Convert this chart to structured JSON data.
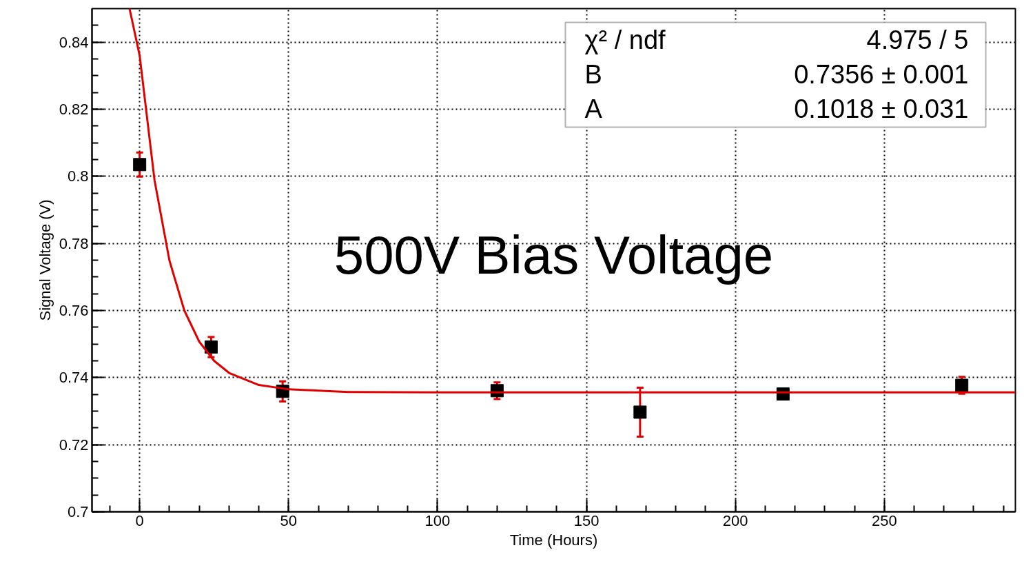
{
  "chart_data": {
    "type": "scatter",
    "title": "500V Bias Voltage",
    "xlabel": "Time (Hours)",
    "ylabel": "Signal Voltage (V)",
    "annotations": [
      "χ² / ndf",
      "4.975 / 5",
      "B",
      "0.7356 ± 0.001",
      "A",
      "0.1018 ± 0.031"
    ],
    "series": [
      {
        "color": "#000000",
        "marker": "square",
        "x": [
          0,
          24,
          48,
          120,
          168,
          216,
          276
        ],
        "values": [
          0.8035,
          0.7491,
          0.7359,
          0.7361,
          0.7297,
          0.7351,
          0.7377
        ],
        "errors": [
          0.0036,
          0.003,
          0.003,
          0.0025,
          0.0073,
          0.001,
          0.0025
        ]
      },
      {
        "type": "line",
        "color": "#e00000",
        "line_style": "solid",
        "x": [
          -3.4,
          0,
          5,
          10,
          15,
          20,
          25,
          30,
          40,
          50,
          70,
          100,
          294
        ],
        "values": [
          0.85,
          0.836,
          0.7988,
          0.7749,
          0.76,
          0.7507,
          0.745,
          0.7414,
          0.7378,
          0.7365,
          0.7357,
          0.7356,
          0.7356
        ]
      }
    ],
    "xlim": [
      -16,
      294
    ],
    "ylim": [
      0.7,
      0.85
    ],
    "xticks": [
      0,
      50,
      100,
      150,
      200,
      250
    ],
    "yticks": [
      0.7,
      0.72,
      0.74,
      0.76,
      0.78,
      0.8,
      0.82,
      0.84
    ],
    "grid": true
  }
}
